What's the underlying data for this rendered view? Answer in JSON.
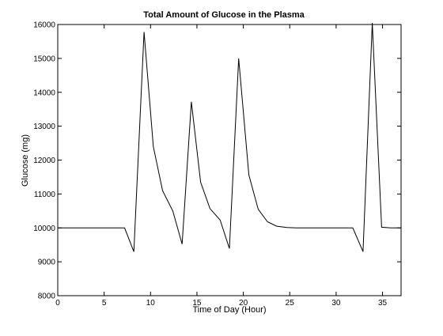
{
  "chart_data": {
    "type": "line",
    "title": "Total Amount of Glucose in the Plasma",
    "xlabel": "Time of Day (Hour)",
    "ylabel": "Glucose (mg)",
    "xlim": [
      0,
      37
    ],
    "ylim": [
      8000,
      16000
    ],
    "grid": false,
    "xticks": [
      0,
      5,
      10,
      15,
      20,
      25,
      30,
      35
    ],
    "yticks": [
      8000,
      9000,
      10000,
      11000,
      12000,
      13000,
      14000,
      15000,
      16000
    ],
    "xtick_labels": [
      "0",
      "5",
      "10",
      "15",
      "20",
      "25",
      "30",
      "35"
    ],
    "ytick_labels": [
      "8000",
      "9000",
      "10000",
      "11000",
      "12000",
      "13000",
      "14000",
      "15000",
      "16000"
    ],
    "series": [
      {
        "color": "#000000",
        "x": [
          0,
          1,
          2,
          3,
          4,
          5,
          6,
          7.2,
          8.2,
          9.3,
          10.3,
          11.3,
          12.4,
          13.4,
          14.4,
          15.4,
          16.4,
          17.5,
          18.5,
          19.5,
          20.6,
          21.6,
          22.6,
          23.6,
          24.7,
          25.7,
          26.7,
          27.7,
          28.8,
          29.8,
          30.8,
          31.8,
          32.9,
          33.9,
          34.9,
          35.9,
          37
        ],
        "y": [
          10000,
          10000,
          10000,
          10000,
          10000,
          10000,
          10000,
          10000,
          9300,
          15780,
          12400,
          11100,
          10500,
          9520,
          13720,
          11350,
          10570,
          10230,
          9390,
          15000,
          11560,
          10550,
          10180,
          10050,
          10010,
          10000,
          10000,
          10000,
          10000,
          10000,
          10000,
          10000,
          9300,
          16050,
          10020,
          10000,
          10000
        ]
      }
    ]
  }
}
